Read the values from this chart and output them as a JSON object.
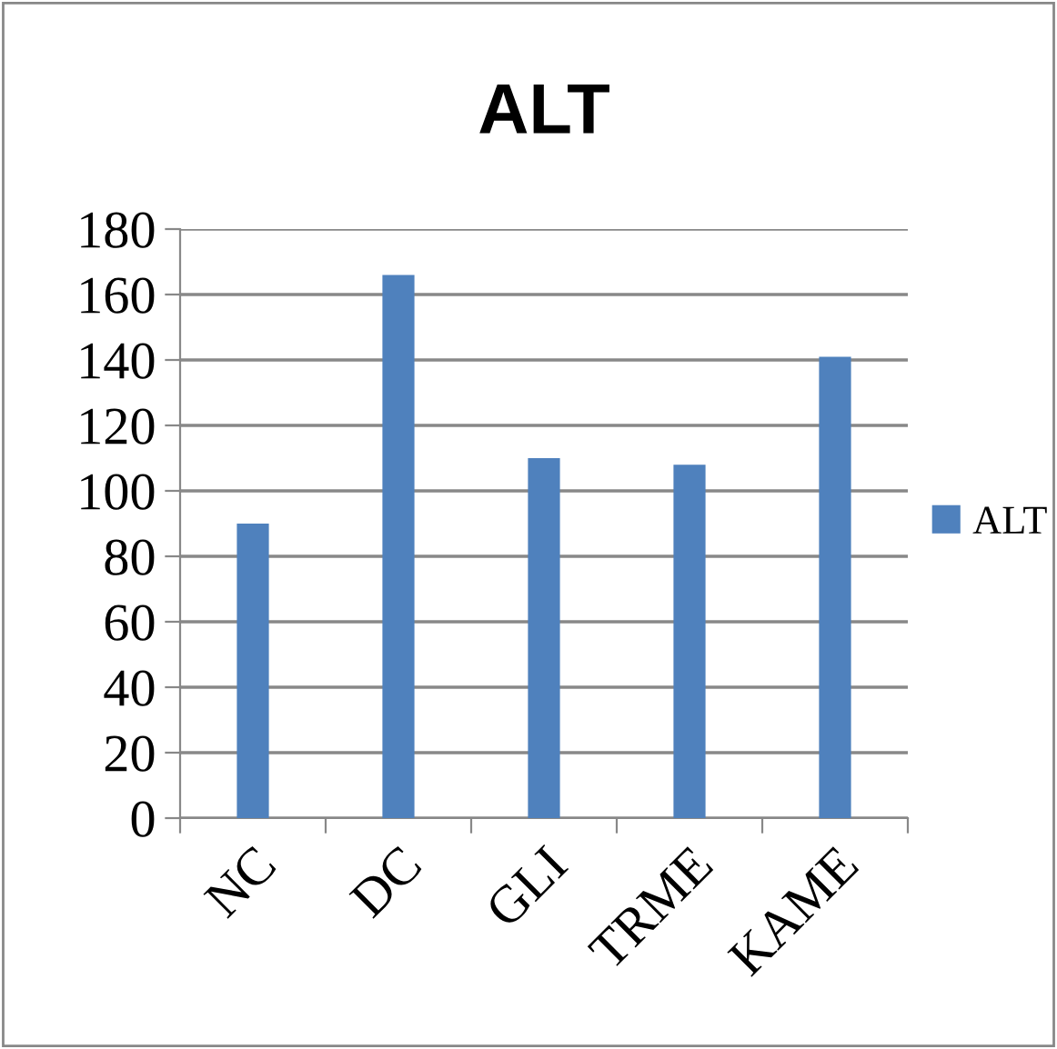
{
  "chart_data": {
    "type": "bar",
    "title": "ALT",
    "categories": [
      "NC",
      "DC",
      "GLI",
      "TRME",
      "KAME"
    ],
    "series": [
      {
        "name": "ALT",
        "color": "#4f81bd",
        "values": [
          90,
          166,
          110,
          108,
          141
        ]
      }
    ],
    "ylim": [
      0,
      180
    ],
    "yticks": [
      0,
      20,
      40,
      60,
      80,
      100,
      120,
      140,
      160,
      180
    ],
    "grid": "y",
    "legend": "right"
  }
}
